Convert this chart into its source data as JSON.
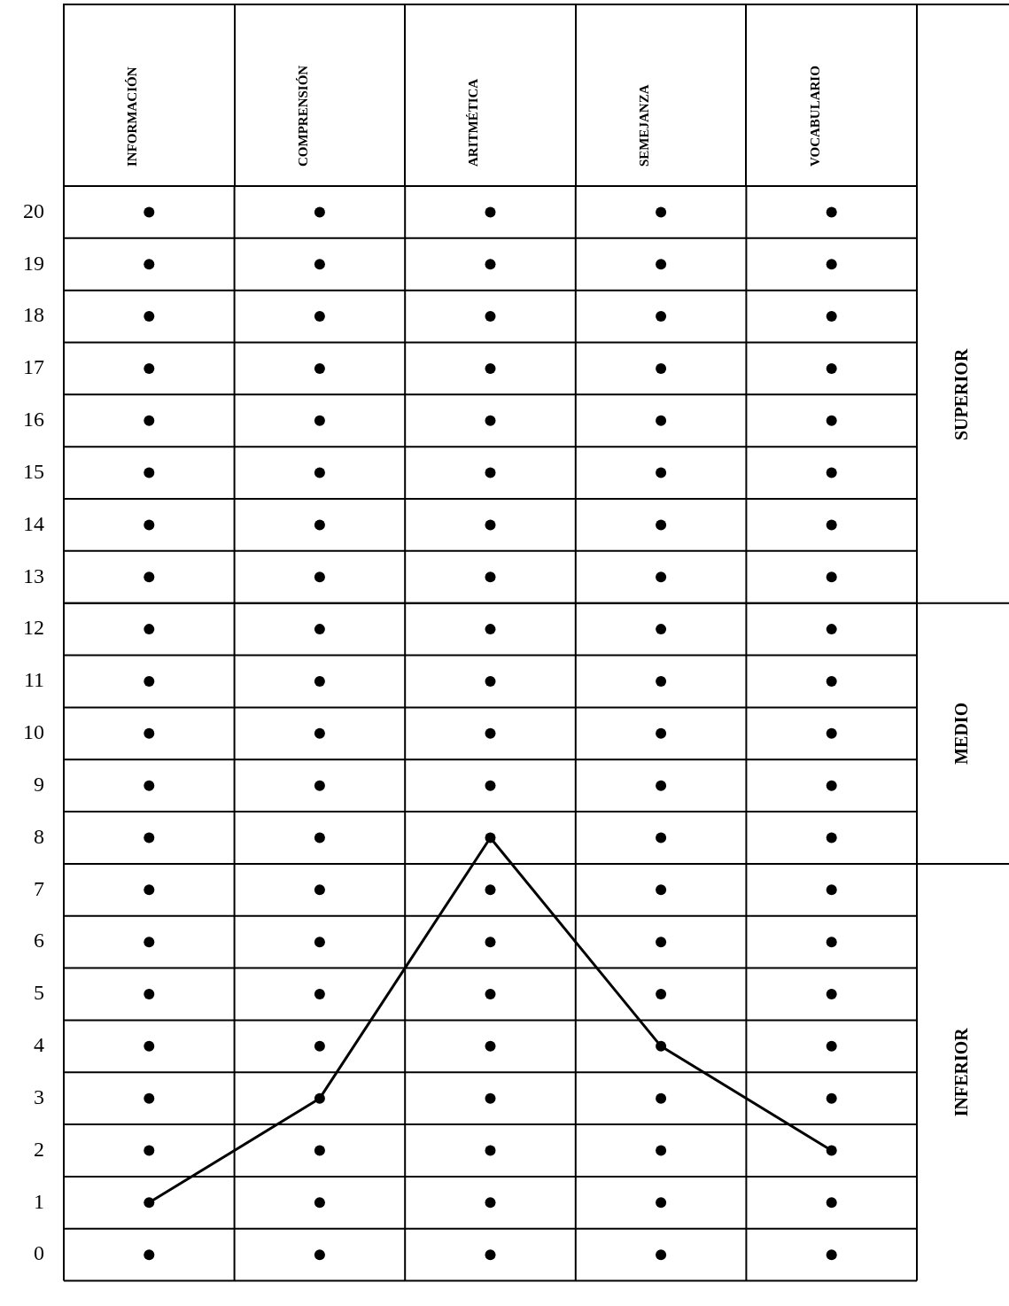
{
  "chart_data": {
    "type": "line",
    "categories": [
      "INFORMACIÓN",
      "COMPRENSIÓN",
      "ARITMÉTICA",
      "SEMEJANZA",
      "VOCABULARIO"
    ],
    "series": [
      {
        "color": "#000000",
        "values": [
          1,
          3,
          8,
          4,
          2
        ],
        "marker": "none"
      },
      {
        "type": "scatter",
        "color": "#000000",
        "marker": "circle",
        "x": [
          "INFORMACIÓN",
          "INFORMACIÓN",
          "INFORMACIÓN",
          "INFORMACIÓN",
          "INFORMACIÓN",
          "INFORMACIÓN",
          "INFORMACIÓN",
          "INFORMACIÓN",
          "INFORMACIÓN",
          "INFORMACIÓN",
          "INFORMACIÓN",
          "INFORMACIÓN",
          "INFORMACIÓN",
          "INFORMACIÓN",
          "INFORMACIÓN",
          "INFORMACIÓN",
          "INFORMACIÓN",
          "INFORMACIÓN",
          "INFORMACIÓN",
          "INFORMACIÓN",
          "INFORMACIÓN",
          "COMPRENSIÓN",
          "COMPRENSIÓN",
          "COMPRENSIÓN",
          "COMPRENSIÓN",
          "COMPRENSIÓN",
          "COMPRENSIÓN",
          "COMPRENSIÓN",
          "COMPRENSIÓN",
          "COMPRENSIÓN",
          "COMPRENSIÓN",
          "COMPRENSIÓN",
          "COMPRENSIÓN",
          "COMPRENSIÓN",
          "COMPRENSIÓN",
          "COMPRENSIÓN",
          "COMPRENSIÓN",
          "COMPRENSIÓN",
          "COMPRENSIÓN",
          "COMPRENSIÓN",
          "COMPRENSIÓN",
          "COMPRENSIÓN",
          "ARITMÉTICA",
          "ARITMÉTICA",
          "ARITMÉTICA",
          "ARITMÉTICA",
          "ARITMÉTICA",
          "ARITMÉTICA",
          "ARITMÉTICA",
          "ARITMÉTICA",
          "ARITMÉTICA",
          "ARITMÉTICA",
          "ARITMÉTICA",
          "ARITMÉTICA",
          "ARITMÉTICA",
          "ARITMÉTICA",
          "ARITMÉTICA",
          "ARITMÉTICA",
          "ARITMÉTICA",
          "ARITMÉTICA",
          "ARITMÉTICA",
          "ARITMÉTICA",
          "ARITMÉTICA",
          "SEMEJANZA",
          "SEMEJANZA",
          "SEMEJANZA",
          "SEMEJANZA",
          "SEMEJANZA",
          "SEMEJANZA",
          "SEMEJANZA",
          "SEMEJANZA",
          "SEMEJANZA",
          "SEMEJANZA",
          "SEMEJANZA",
          "SEMEJANZA",
          "SEMEJANZA",
          "SEMEJANZA",
          "SEMEJANZA",
          "SEMEJANZA",
          "SEMEJANZA",
          "SEMEJANZA",
          "SEMEJANZA",
          "SEMEJANZA",
          "SEMEJANZA",
          "VOCABULARIO",
          "VOCABULARIO",
          "VOCABULARIO",
          "VOCABULARIO",
          "VOCABULARIO",
          "VOCABULARIO",
          "VOCABULARIO",
          "VOCABULARIO",
          "VOCABULARIO",
          "VOCABULARIO",
          "VOCABULARIO",
          "VOCABULARIO",
          "VOCABULARIO",
          "VOCABULARIO",
          "VOCABULARIO",
          "VOCABULARIO",
          "VOCABULARIO",
          "VOCABULARIO",
          "VOCABULARIO",
          "VOCABULARIO",
          "VOCABULARIO"
        ],
        "values": [
          0,
          1,
          2,
          3,
          4,
          5,
          6,
          7,
          8,
          9,
          10,
          11,
          12,
          13,
          14,
          15,
          16,
          17,
          18,
          19,
          20,
          0,
          1,
          2,
          3,
          4,
          5,
          6,
          7,
          8,
          9,
          10,
          11,
          12,
          13,
          14,
          15,
          16,
          17,
          18,
          19,
          20,
          0,
          1,
          2,
          3,
          4,
          5,
          6,
          7,
          8,
          9,
          10,
          11,
          12,
          13,
          14,
          15,
          16,
          17,
          18,
          19,
          20,
          0,
          1,
          2,
          3,
          4,
          5,
          6,
          7,
          8,
          9,
          10,
          11,
          12,
          13,
          14,
          15,
          16,
          17,
          18,
          19,
          20,
          0,
          1,
          2,
          3,
          4,
          5,
          6,
          7,
          8,
          9,
          10,
          11,
          12,
          13,
          14,
          15,
          16,
          17,
          18,
          19,
          20
        ]
      }
    ],
    "ylim": [
      -0.5,
      20.5
    ],
    "yticks": [
      0,
      1,
      2,
      3,
      4,
      5,
      6,
      7,
      8,
      9,
      10,
      11,
      12,
      13,
      14,
      15,
      16,
      17,
      18,
      19,
      20
    ],
    "grid": true,
    "legend": false,
    "line_style": "solid",
    "ref_lines": [
      {
        "axis": "y",
        "value": 12.5,
        "color": "#000000"
      },
      {
        "axis": "y",
        "value": 7.5,
        "color": "#000000"
      }
    ],
    "annotations": [
      "SUPERIOR",
      "MEDIO",
      "INFERIOR"
    ]
  }
}
